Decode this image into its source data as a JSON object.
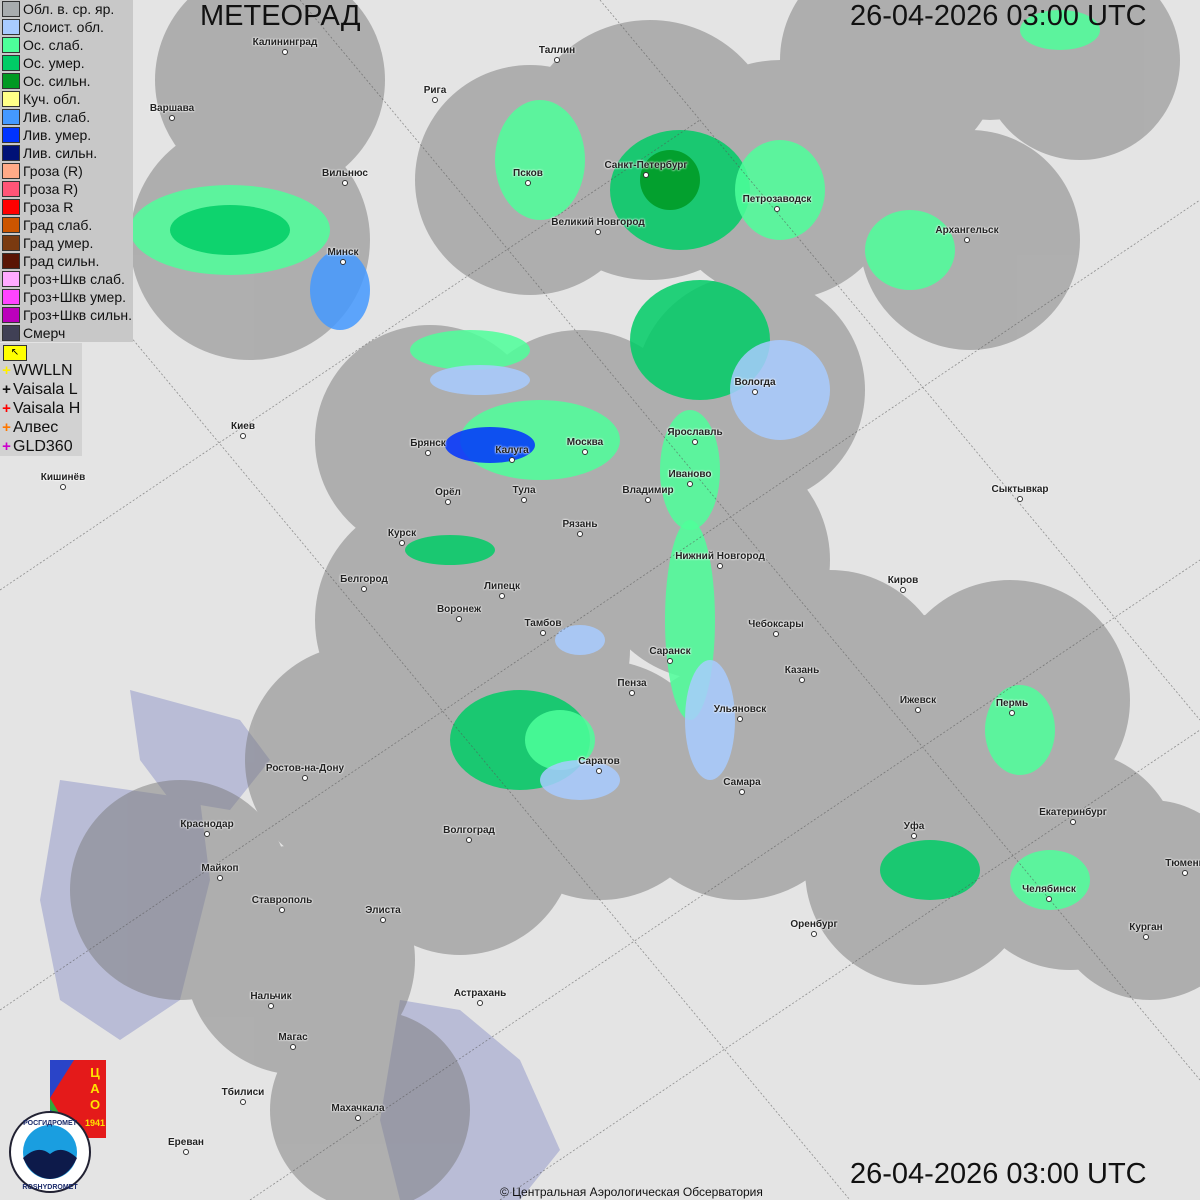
{
  "header": {
    "title": "МЕТЕОРАД",
    "timestamp_top": "26-04-2026  03:00 UTC",
    "timestamp_bottom": "26-04-2026  03:00 UTC"
  },
  "legend": [
    {
      "label": "Обл. в. ср. яр.",
      "color": "#a8acae"
    },
    {
      "label": "Слоист. обл.",
      "color": "#a8cbff"
    },
    {
      "label": "Ос. слаб.",
      "color": "#4dff9a"
    },
    {
      "label": "Ос. умер.",
      "color": "#00cc66"
    },
    {
      "label": "Ос. сильн.",
      "color": "#009922"
    },
    {
      "label": "Куч. обл.",
      "color": "#ffff88"
    },
    {
      "label": "Лив. слаб.",
      "color": "#4499ff"
    },
    {
      "label": "Лив. умер.",
      "color": "#0033ff"
    },
    {
      "label": "Лив. сильн.",
      "color": "#001177"
    },
    {
      "label": "Гроза (R)",
      "color": "#ffaa88"
    },
    {
      "label": "Гроза R)",
      "color": "#ff5577"
    },
    {
      "label": "Гроза R",
      "color": "#ff0000"
    },
    {
      "label": "Град слаб.",
      "color": "#cc5500"
    },
    {
      "label": "Град умер.",
      "color": "#7a3a10"
    },
    {
      "label": "Град сильн.",
      "color": "#5a1505"
    },
    {
      "label": "Гроз+Шкв слаб.",
      "color": "#ffaaff"
    },
    {
      "label": "Гроз+Шкв умер.",
      "color": "#ff44ff"
    },
    {
      "label": "Гроз+Шкв сильн.",
      "color": "#bb00bb"
    },
    {
      "label": "Смерч",
      "color": "#404055"
    }
  ],
  "lightning": [
    {
      "label": "WWLLN",
      "color": "#ffee00"
    },
    {
      "label": "Vaisala L",
      "color": "#111111"
    },
    {
      "label": "Vaisala H",
      "color": "#ff0000"
    },
    {
      "label": "Алвес",
      "color": "#ff7700"
    },
    {
      "label": "GLD360",
      "color": "#cc00cc"
    }
  ],
  "cities": [
    "Калининград",
    "Таллин",
    "Рига",
    "Варшава",
    "Вильнюс",
    "Псков",
    "Санкт-Петербург",
    "Петрозаводск",
    "Архангельск",
    "Великий Новгород",
    "Минск",
    "Вологда",
    "Ярославль",
    "Киев",
    "Брянск",
    "Калуга",
    "Москва",
    "Иваново",
    "Тула",
    "Владимир",
    "Орёл",
    "Кишинёв",
    "Рязань",
    "Сыктывкар",
    "Курск",
    "Нижний Новгород",
    "Белгород",
    "Липецк",
    "Киров",
    "Воронеж",
    "Тамбов",
    "Чебоксары",
    "Саранск",
    "Казань",
    "Пенза",
    "Ижевск",
    "Пермь",
    "Ульяновск",
    "Ростов-на-Дону",
    "Саратов",
    "Самара",
    "Екатеринбург",
    "Краснодар",
    "Уфа",
    "Волгоград",
    "Тюмень",
    "Майкоп",
    "Челябинск",
    "Ставрополь",
    "Элиста",
    "Оренбург",
    "Курган",
    "Астрахань",
    "Нальчик",
    "Магас",
    "Тбилиси",
    "Махачкала",
    "Ереван"
  ],
  "logos": {
    "cao": "ЦАО 1941",
    "roshydromet": "РОСГИДРОМЕТ ROSHYDROMET"
  },
  "credit": "© Центральная Аэрологическая Обсерватория"
}
